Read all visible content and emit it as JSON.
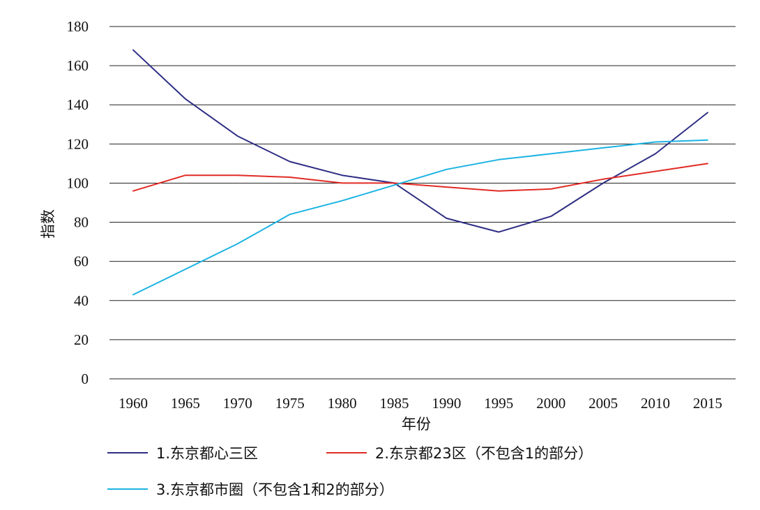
{
  "chart_data": {
    "type": "line",
    "title": "",
    "xlabel": "年份",
    "ylabel": "指数",
    "x": [
      "1960",
      "1965",
      "1970",
      "1975",
      "1980",
      "1985",
      "1990",
      "1995",
      "2000",
      "2005",
      "2010",
      "2015"
    ],
    "ylim": [
      0,
      180
    ],
    "yticks": [
      0,
      20,
      40,
      60,
      80,
      100,
      120,
      140,
      160,
      180
    ],
    "grid": true,
    "legend_position": "bottom",
    "series": [
      {
        "name": "1.东京都心三区",
        "color": "#2e2d84",
        "values": [
          168,
          143,
          124,
          111,
          104,
          100,
          82,
          75,
          83,
          100,
          115,
          136
        ]
      },
      {
        "name": "2.东京都23区（不包含1的部分）",
        "color": "#e12b25",
        "values": [
          96,
          104,
          104,
          103,
          100,
          100,
          98,
          96,
          97,
          102,
          106,
          110
        ]
      },
      {
        "name": "3.东京都市圈（不包含1和2的部分）",
        "color": "#1cb3e3",
        "values": [
          43,
          56,
          69,
          84,
          91,
          99,
          107,
          112,
          115,
          118,
          121,
          122
        ]
      }
    ]
  }
}
